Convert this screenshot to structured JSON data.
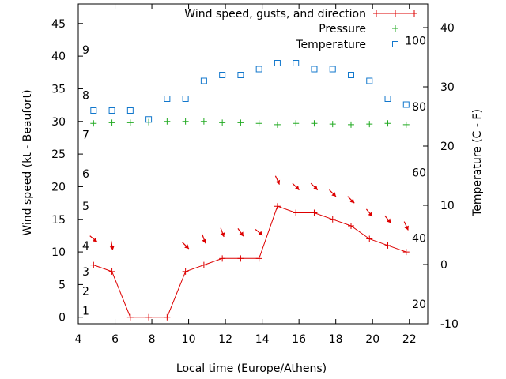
{
  "chart_data": {
    "type": "line",
    "xlabel": "Local time (Europe/Athens)",
    "ylabel_left": "Wind speed (kt - Beaufort)",
    "ylabel_right": "Temperature (C - F)",
    "x_range": [
      4,
      23
    ],
    "x_ticks": [
      4,
      6,
      8,
      10,
      12,
      14,
      16,
      18,
      20,
      22
    ],
    "y_left_range": [
      -1,
      48
    ],
    "y_left_ticks": [
      0,
      5,
      10,
      15,
      20,
      25,
      30,
      35,
      40,
      45
    ],
    "y_right_range": [
      -10,
      44
    ],
    "y_right_ticks": [
      -10,
      0,
      10,
      20,
      30,
      40
    ],
    "beaufort_labels": [
      {
        "label": "1",
        "kt": 1
      },
      {
        "label": "2",
        "kt": 4
      },
      {
        "label": "3",
        "kt": 7
      },
      {
        "label": "4",
        "kt": 11
      },
      {
        "label": "5",
        "kt": 17
      },
      {
        "label": "6",
        "kt": 22
      },
      {
        "label": "7",
        "kt": 28
      },
      {
        "label": "8",
        "kt": 34
      },
      {
        "label": "9",
        "kt": 41
      }
    ],
    "fahrenheit_labels": [
      {
        "label": "20",
        "f": 20
      },
      {
        "label": "40",
        "f": 40
      },
      {
        "label": "60",
        "f": 60
      },
      {
        "label": "80",
        "f": 80
      },
      {
        "label": "100",
        "f": 100
      }
    ],
    "legend": {
      "position": "top-right",
      "entries": [
        "Wind speed, gusts, and direction",
        "Pressure",
        "Temperature"
      ]
    },
    "colors": {
      "wind": "#dd0000",
      "pressure": "#22aa22",
      "temperature": "#1177cc"
    },
    "series": [
      {
        "name": "Wind speed, gusts, and direction",
        "axis": "left",
        "style": "line-plus",
        "x": [
          4.83,
          5.83,
          6.83,
          7.83,
          8.83,
          9.83,
          10.83,
          11.83,
          12.83,
          13.83,
          14.83,
          15.83,
          16.83,
          17.83,
          18.83,
          19.83,
          20.83,
          21.83
        ],
        "values": [
          8,
          7,
          0,
          0,
          0,
          7,
          8,
          9,
          9,
          9,
          17,
          16,
          16,
          15,
          14,
          12,
          11,
          10
        ]
      },
      {
        "name": "Pressure",
        "axis": "left",
        "style": "plus",
        "x": [
          4.83,
          5.83,
          6.83,
          7.83,
          8.83,
          9.83,
          10.83,
          11.83,
          12.83,
          13.83,
          14.83,
          15.83,
          16.83,
          17.83,
          18.83,
          19.83,
          20.83,
          21.83
        ],
        "values": [
          29.7,
          29.8,
          29.8,
          29.9,
          30.0,
          30.0,
          30.0,
          29.8,
          29.8,
          29.7,
          29.5,
          29.7,
          29.7,
          29.6,
          29.5,
          29.6,
          29.7,
          29.5
        ]
      },
      {
        "name": "Temperature",
        "axis": "right",
        "style": "square",
        "x": [
          4.83,
          5.83,
          6.83,
          7.83,
          8.83,
          9.83,
          10.83,
          11.83,
          12.83,
          13.83,
          14.83,
          15.83,
          16.83,
          17.83,
          18.83,
          19.83,
          20.83,
          21.83
        ],
        "values": [
          26,
          26,
          26,
          24.5,
          28,
          28,
          31,
          32,
          32,
          33,
          34,
          34,
          33,
          33,
          32,
          31,
          28,
          27
        ]
      }
    ],
    "wind_direction": {
      "x": [
        4.83,
        5.83,
        9.83,
        10.83,
        11.83,
        12.83,
        13.83,
        14.83,
        15.83,
        16.83,
        17.83,
        18.83,
        19.83,
        20.83,
        21.83
      ],
      "kt_position": [
        12,
        11,
        11,
        12,
        13,
        13,
        13,
        21,
        20,
        20,
        19,
        18,
        16,
        15,
        14
      ],
      "heading_deg": [
        130,
        170,
        135,
        160,
        160,
        145,
        130,
        155,
        135,
        135,
        135,
        135,
        140,
        140,
        155
      ]
    }
  }
}
